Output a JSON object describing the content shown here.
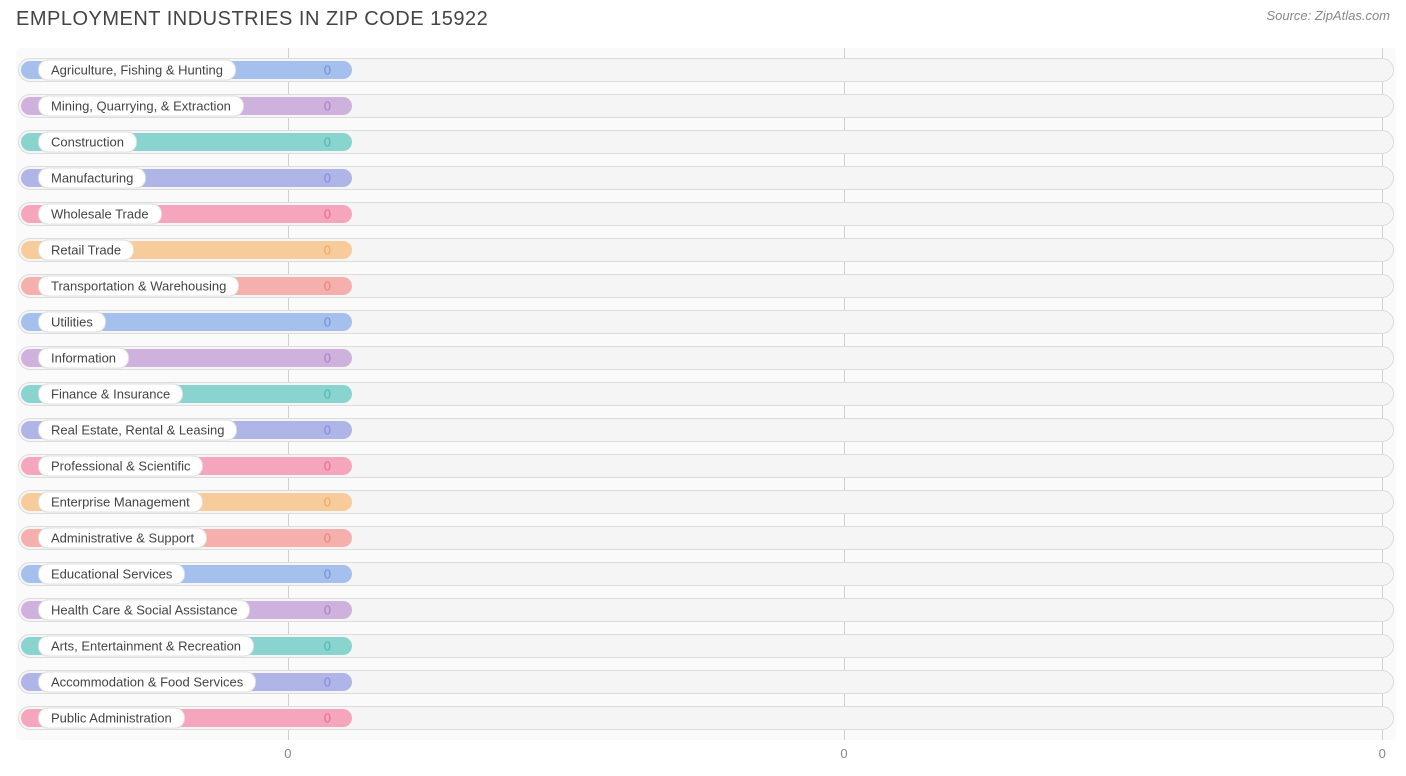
{
  "title": "EMPLOYMENT INDUSTRIES IN ZIP CODE 15922",
  "source": "Source: ZipAtlas.com",
  "chart": {
    "type": "bar-horizontal",
    "background_color": "#fafafa",
    "track_bg": "#f5f5f5",
    "track_border": "#dcdcdc",
    "grid_color": "#d0d0d0",
    "label_pill_bg": "#ffffff",
    "label_pill_border": "#e0e0e0",
    "label_text_color": "#444444",
    "value_text_color_light": "#ffffff",
    "bar_fill_pct": 24,
    "value_label_left_pct": 22.3,
    "x_ticks": [
      {
        "pos_pct": 19.7,
        "label": "0"
      },
      {
        "pos_pct": 60.0,
        "label": "0"
      },
      {
        "pos_pct": 99.0,
        "label": "0"
      }
    ],
    "gridlines_pct": [
      19.7,
      60.0,
      99.0
    ],
    "categories": [
      {
        "label": "Agriculture, Fishing & Hunting",
        "value": "0",
        "color": "#a5c0ec",
        "value_color": "#6b8fd4"
      },
      {
        "label": "Mining, Quarrying, & Extraction",
        "value": "0",
        "color": "#cfb1de",
        "value_color": "#a77cc4"
      },
      {
        "label": "Construction",
        "value": "0",
        "color": "#8ad4cf",
        "value_color": "#4fb3ab"
      },
      {
        "label": "Manufacturing",
        "value": "0",
        "color": "#b0b5e8",
        "value_color": "#7f87d6"
      },
      {
        "label": "Wholesale Trade",
        "value": "0",
        "color": "#f5a6bd",
        "value_color": "#e26a8f"
      },
      {
        "label": "Retail Trade",
        "value": "0",
        "color": "#f7cc9a",
        "value_color": "#e8a85f"
      },
      {
        "label": "Transportation & Warehousing",
        "value": "0",
        "color": "#f5b0ad",
        "value_color": "#e57e79"
      },
      {
        "label": "Utilities",
        "value": "0",
        "color": "#a5c0ec",
        "value_color": "#6b8fd4"
      },
      {
        "label": "Information",
        "value": "0",
        "color": "#cfb1de",
        "value_color": "#a77cc4"
      },
      {
        "label": "Finance & Insurance",
        "value": "0",
        "color": "#8ad4cf",
        "value_color": "#4fb3ab"
      },
      {
        "label": "Real Estate, Rental & Leasing",
        "value": "0",
        "color": "#b0b5e8",
        "value_color": "#7f87d6"
      },
      {
        "label": "Professional & Scientific",
        "value": "0",
        "color": "#f5a6bd",
        "value_color": "#e26a8f"
      },
      {
        "label": "Enterprise Management",
        "value": "0",
        "color": "#f7cc9a",
        "value_color": "#e8a85f"
      },
      {
        "label": "Administrative & Support",
        "value": "0",
        "color": "#f5b0ad",
        "value_color": "#e57e79"
      },
      {
        "label": "Educational Services",
        "value": "0",
        "color": "#a5c0ec",
        "value_color": "#6b8fd4"
      },
      {
        "label": "Health Care & Social Assistance",
        "value": "0",
        "color": "#cfb1de",
        "value_color": "#a77cc4"
      },
      {
        "label": "Arts, Entertainment & Recreation",
        "value": "0",
        "color": "#8ad4cf",
        "value_color": "#4fb3ab"
      },
      {
        "label": "Accommodation & Food Services",
        "value": "0",
        "color": "#b0b5e8",
        "value_color": "#7f87d6"
      },
      {
        "label": "Public Administration",
        "value": "0",
        "color": "#f5a6bd",
        "value_color": "#e26a8f"
      }
    ]
  }
}
